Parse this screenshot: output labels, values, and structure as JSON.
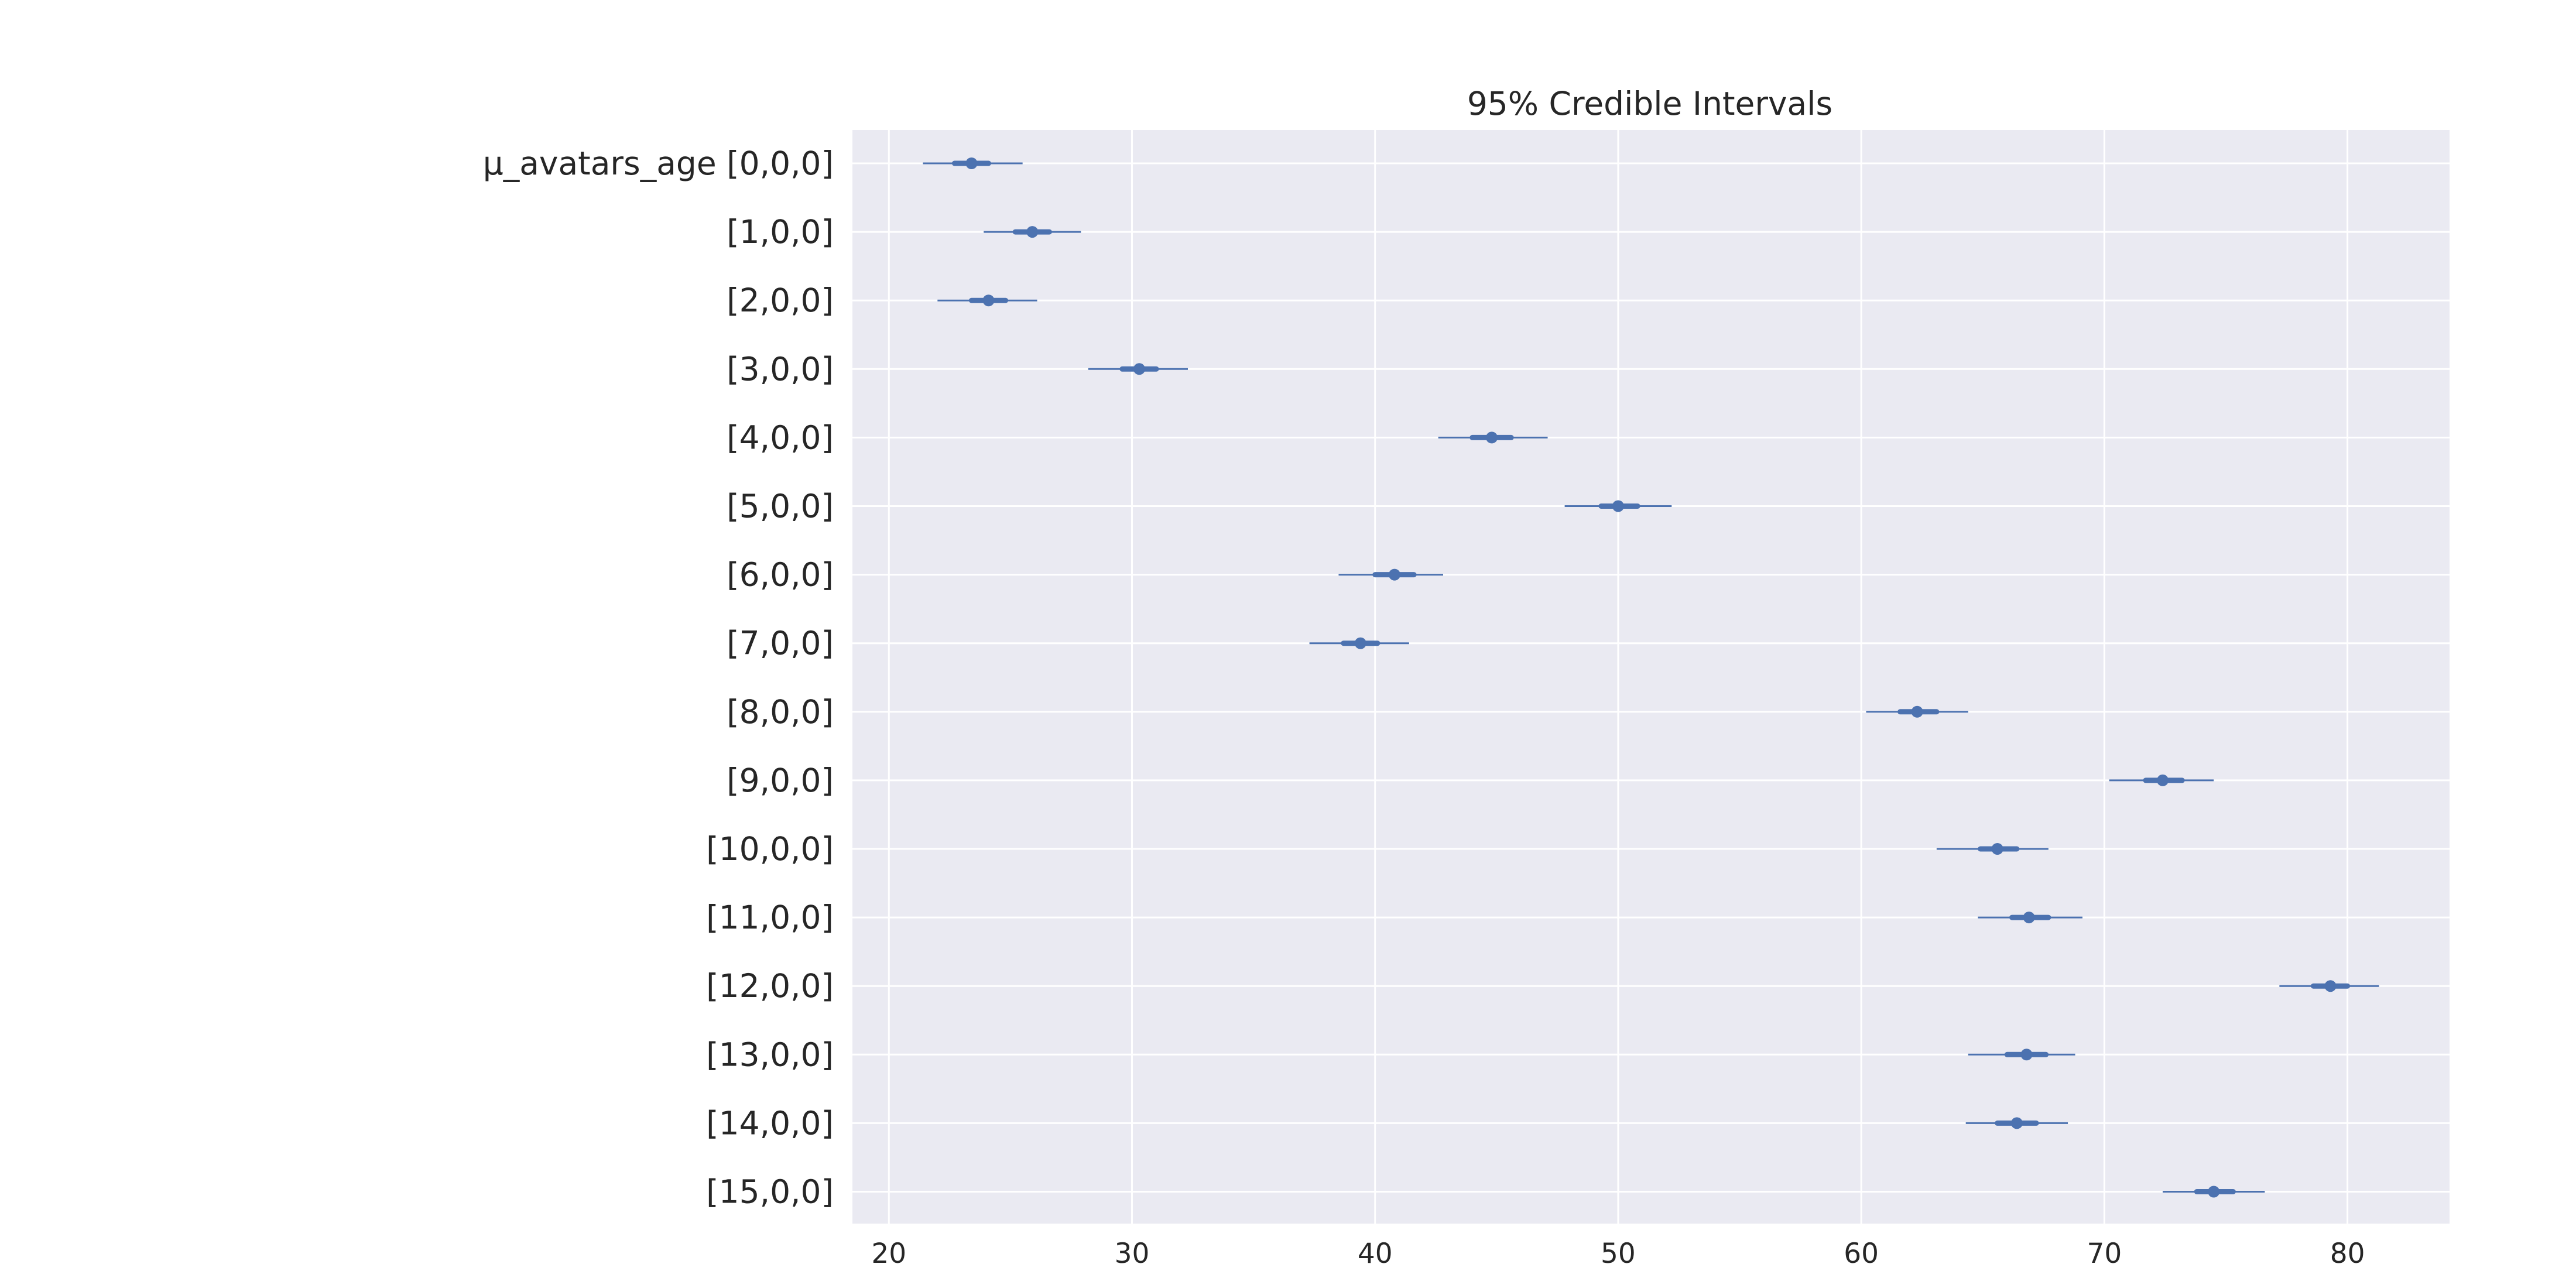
{
  "chart_data": {
    "type": "forest",
    "title": "95% Credible Intervals",
    "xlabel": "",
    "ylabel": "",
    "xlim": [
      18.5,
      84.2
    ],
    "xticks": [
      20,
      30,
      40,
      50,
      60,
      70,
      80
    ],
    "grid": true,
    "legend": "none",
    "colors": {
      "plot_bg": "#eaeaf2",
      "grid": "#ffffff",
      "marker": "#4c72b0",
      "text": "#262626"
    },
    "rows": [
      {
        "label": "μ_avatars_age [0,0,0]",
        "median": 23.4,
        "hdi_low": 21.4,
        "hdi_high": 25.5,
        "iqr_low": 22.7,
        "iqr_high": 24.1
      },
      {
        "label": "[1,0,0]",
        "median": 25.9,
        "hdi_low": 23.9,
        "hdi_high": 27.9,
        "iqr_low": 25.2,
        "iqr_high": 26.6
      },
      {
        "label": "[2,0,0]",
        "median": 24.1,
        "hdi_low": 22.0,
        "hdi_high": 26.1,
        "iqr_low": 23.4,
        "iqr_high": 24.8
      },
      {
        "label": "[3,0,0]",
        "median": 30.3,
        "hdi_low": 28.2,
        "hdi_high": 32.3,
        "iqr_low": 29.6,
        "iqr_high": 31.0
      },
      {
        "label": "[4,0,0]",
        "median": 44.8,
        "hdi_low": 42.6,
        "hdi_high": 47.1,
        "iqr_low": 44.0,
        "iqr_high": 45.6
      },
      {
        "label": "[5,0,0]",
        "median": 50.0,
        "hdi_low": 47.8,
        "hdi_high": 52.2,
        "iqr_low": 49.3,
        "iqr_high": 50.8
      },
      {
        "label": "[6,0,0]",
        "median": 40.8,
        "hdi_low": 38.5,
        "hdi_high": 42.8,
        "iqr_low": 40.0,
        "iqr_high": 41.6
      },
      {
        "label": "[7,0,0]",
        "median": 39.4,
        "hdi_low": 37.3,
        "hdi_high": 41.4,
        "iqr_low": 38.7,
        "iqr_high": 40.1
      },
      {
        "label": "[8,0,0]",
        "median": 62.3,
        "hdi_low": 60.2,
        "hdi_high": 64.4,
        "iqr_low": 61.6,
        "iqr_high": 63.1
      },
      {
        "label": "[9,0,0]",
        "median": 72.4,
        "hdi_low": 70.2,
        "hdi_high": 74.5,
        "iqr_low": 71.7,
        "iqr_high": 73.2
      },
      {
        "label": "[10,0,0]",
        "median": 65.6,
        "hdi_low": 63.1,
        "hdi_high": 67.7,
        "iqr_low": 64.9,
        "iqr_high": 66.4
      },
      {
        "label": "[11,0,0]",
        "median": 66.9,
        "hdi_low": 64.8,
        "hdi_high": 69.1,
        "iqr_low": 66.2,
        "iqr_high": 67.7
      },
      {
        "label": "[12,0,0]",
        "median": 79.3,
        "hdi_low": 77.2,
        "hdi_high": 81.3,
        "iqr_low": 78.6,
        "iqr_high": 80.0
      },
      {
        "label": "[13,0,0]",
        "median": 66.8,
        "hdi_low": 64.4,
        "hdi_high": 68.8,
        "iqr_low": 66.0,
        "iqr_high": 67.6
      },
      {
        "label": "[14,0,0]",
        "median": 66.4,
        "hdi_low": 64.3,
        "hdi_high": 68.5,
        "iqr_low": 65.6,
        "iqr_high": 67.2
      },
      {
        "label": "[15,0,0]",
        "median": 74.5,
        "hdi_low": 72.4,
        "hdi_high": 76.6,
        "iqr_low": 73.8,
        "iqr_high": 75.3
      }
    ]
  }
}
